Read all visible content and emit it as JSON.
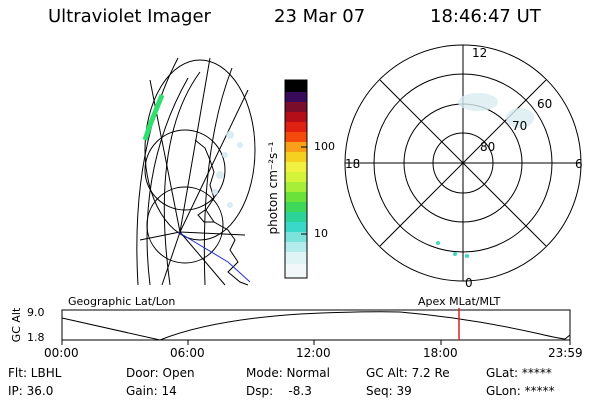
{
  "header": {
    "instrument": "Ultraviolet Imager",
    "date": "23 Mar 07",
    "time": "18:46:47 UT"
  },
  "colorbar": {
    "unit_label": "photon cm⁻²s⁻¹",
    "ticks": [
      "100",
      "10"
    ]
  },
  "polar_plot": {
    "mlt_labels": {
      "top": "12",
      "bottom": "0",
      "left": "18",
      "right": "6"
    },
    "lat_labels": [
      "60",
      "70",
      "80"
    ]
  },
  "altitude_plot": {
    "left_label": "Geographic Lat/Lon",
    "right_label": "Apex MLat/MLT",
    "y_axis_label": "GC Alt",
    "y_ticks": [
      "9.0",
      "1.8"
    ],
    "x_ticks": [
      "00:00",
      "06:00",
      "12:00",
      "18:00",
      "23:59"
    ]
  },
  "status": {
    "filter": "Flt: LBHL",
    "ip": "IP: 36.0",
    "door": "Door: Open",
    "gain": "Gain: 14",
    "mode": "Mode: Normal",
    "dsp": "Dsp:    -8.3",
    "gc_alt": "GC Alt: 7.2 Re",
    "seq": "Seq: 39",
    "glat": "GLat: *****",
    "glon": "GLon: *****"
  }
}
